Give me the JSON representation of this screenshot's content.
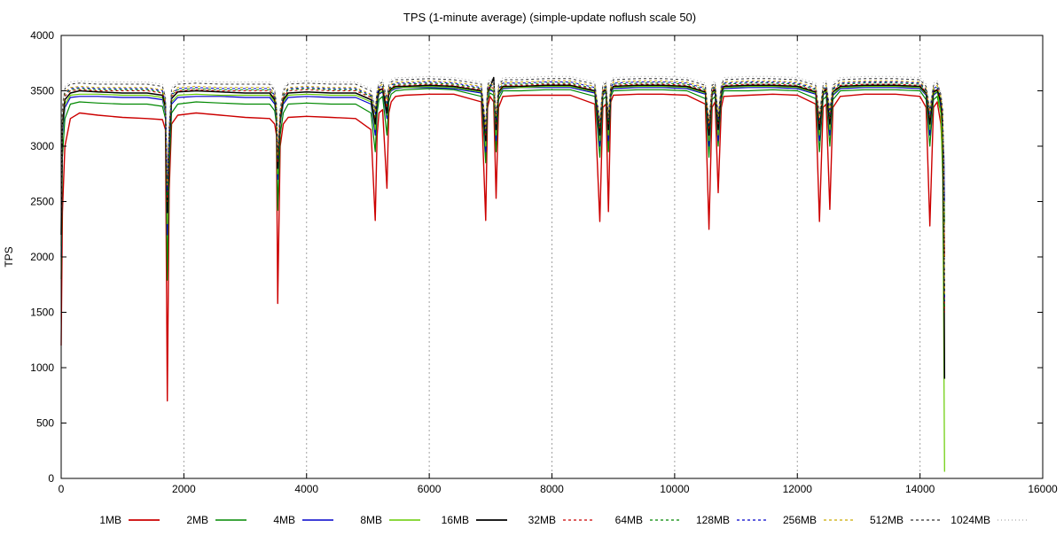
{
  "chart_data": {
    "type": "line",
    "title": "TPS (1-minute average) (simple-update noflush scale 50)",
    "xlabel": "",
    "ylabel": "TPS",
    "xlim": [
      0,
      16000
    ],
    "ylim": [
      0,
      4000
    ],
    "x_ticks": [
      0,
      2000,
      4000,
      6000,
      8000,
      10000,
      12000,
      14000,
      16000
    ],
    "y_ticks": [
      0,
      500,
      1000,
      1500,
      2000,
      2500,
      3000,
      3500,
      4000
    ],
    "x_grid": true,
    "y_grid": false,
    "legend_position": "bottom",
    "x": [
      0,
      20,
      60,
      150,
      300,
      600,
      1000,
      1400,
      1650,
      1700,
      1730,
      1760,
      1800,
      1900,
      2200,
      2600,
      3000,
      3400,
      3480,
      3510,
      3530,
      3570,
      3620,
      3700,
      4000,
      4400,
      4800,
      5050,
      5120,
      5150,
      5180,
      5240,
      5310,
      5340,
      5380,
      5450,
      5600,
      6000,
      6400,
      6850,
      6920,
      6950,
      6990,
      7050,
      7090,
      7130,
      7200,
      7500,
      7900,
      8300,
      8700,
      8780,
      8830,
      8880,
      8920,
      8960,
      9000,
      9400,
      9800,
      10200,
      10500,
      10560,
      10610,
      10660,
      10710,
      10760,
      10800,
      11200,
      11600,
      12000,
      12300,
      12360,
      12420,
      12470,
      12530,
      12580,
      12700,
      13100,
      13600,
      14000,
      14100,
      14160,
      14220,
      14280,
      14340,
      14370,
      14390,
      14400
    ],
    "series": [
      {
        "name": "1MB",
        "color": "#cc0000",
        "dash": "solid",
        "width": 1.4,
        "values": [
          1200,
          2400,
          3000,
          3250,
          3300,
          3280,
          3260,
          3250,
          3240,
          3150,
          700,
          2600,
          3200,
          3280,
          3300,
          3280,
          3260,
          3250,
          3200,
          3100,
          1580,
          3000,
          3200,
          3260,
          3270,
          3260,
          3250,
          3150,
          2330,
          3100,
          3300,
          3330,
          2620,
          3300,
          3400,
          3450,
          3460,
          3470,
          3470,
          3400,
          2330,
          3350,
          3450,
          3400,
          2530,
          3350,
          3450,
          3460,
          3460,
          3460,
          3380,
          2320,
          3350,
          3380,
          2410,
          3400,
          3460,
          3470,
          3470,
          3460,
          3380,
          2250,
          3350,
          3400,
          2580,
          3350,
          3450,
          3460,
          3470,
          3460,
          3380,
          2320,
          3350,
          3380,
          2430,
          3350,
          3450,
          3470,
          3470,
          3450,
          3350,
          2280,
          3350,
          3400,
          3200,
          2900,
          2500,
          2000
        ]
      },
      {
        "name": "2MB",
        "color": "#008800",
        "dash": "solid",
        "width": 1.2,
        "values": [
          1800,
          2900,
          3250,
          3380,
          3400,
          3390,
          3380,
          3380,
          3360,
          3250,
          1790,
          2800,
          3300,
          3380,
          3400,
          3390,
          3380,
          3380,
          3320,
          3200,
          2420,
          3100,
          3300,
          3380,
          3390,
          3380,
          3380,
          3300,
          2950,
          3300,
          3420,
          3450,
          3100,
          3400,
          3470,
          3500,
          3510,
          3520,
          3510,
          3450,
          2850,
          3420,
          3480,
          3460,
          2950,
          3420,
          3500,
          3500,
          3510,
          3510,
          3450,
          2900,
          3420,
          3450,
          2950,
          3450,
          3500,
          3510,
          3510,
          3500,
          3430,
          2900,
          3420,
          3450,
          3000,
          3420,
          3500,
          3500,
          3510,
          3500,
          3430,
          2950,
          3420,
          3450,
          3000,
          3420,
          3500,
          3510,
          3510,
          3500,
          3420,
          3000,
          3420,
          3450,
          3300,
          3100,
          2800,
          2300
        ]
      },
      {
        "name": "4MB",
        "color": "#0000cc",
        "dash": "solid",
        "width": 1.2,
        "values": [
          2000,
          3100,
          3350,
          3440,
          3450,
          3450,
          3440,
          3440,
          3420,
          3300,
          2200,
          2950,
          3380,
          3440,
          3450,
          3450,
          3440,
          3440,
          3380,
          3250,
          2700,
          3200,
          3380,
          3440,
          3450,
          3440,
          3440,
          3380,
          3100,
          3380,
          3470,
          3490,
          3250,
          3460,
          3500,
          3520,
          3530,
          3530,
          3520,
          3480,
          2950,
          3460,
          3510,
          3490,
          3050,
          3460,
          3520,
          3530,
          3530,
          3530,
          3480,
          3000,
          3460,
          3490,
          3050,
          3480,
          3520,
          3530,
          3530,
          3520,
          3470,
          3000,
          3460,
          3490,
          3050,
          3460,
          3520,
          3530,
          3530,
          3520,
          3470,
          3050,
          3460,
          3490,
          3100,
          3460,
          3520,
          3530,
          3530,
          3520,
          3460,
          3100,
          3460,
          3490,
          3350,
          3150,
          2900,
          2500
        ]
      },
      {
        "name": "8MB",
        "color": "#66cc00",
        "dash": "solid",
        "width": 1.2,
        "values": [
          2100,
          3150,
          3380,
          3460,
          3470,
          3470,
          3460,
          3460,
          3440,
          3320,
          2300,
          3000,
          3400,
          3460,
          3470,
          3460,
          3460,
          3460,
          3400,
          3270,
          2750,
          3220,
          3400,
          3460,
          3470,
          3460,
          3460,
          3400,
          3150,
          3400,
          3480,
          3500,
          3280,
          3470,
          3510,
          3530,
          3530,
          3540,
          3530,
          3490,
          3000,
          3470,
          3520,
          3500,
          3100,
          3470,
          3530,
          3530,
          3540,
          3540,
          3490,
          3050,
          3470,
          3500,
          3100,
          3490,
          3530,
          3540,
          3540,
          3530,
          3480,
          3050,
          3470,
          3500,
          3100,
          3470,
          3530,
          3540,
          3540,
          3530,
          3480,
          3100,
          3470,
          3500,
          3150,
          3470,
          3530,
          3540,
          3540,
          3530,
          3470,
          3150,
          3470,
          3500,
          3300,
          2700,
          1000,
          60
        ]
      },
      {
        "name": "16MB",
        "color": "#000000",
        "dash": "solid",
        "width": 1.5,
        "values": [
          2200,
          3200,
          3420,
          3480,
          3500,
          3490,
          3480,
          3480,
          3460,
          3360,
          2400,
          3050,
          3430,
          3490,
          3500,
          3490,
          3480,
          3480,
          3420,
          3300,
          2800,
          3250,
          3420,
          3480,
          3490,
          3480,
          3480,
          3420,
          3200,
          3420,
          3500,
          3520,
          3300,
          3490,
          3520,
          3540,
          3540,
          3550,
          3540,
          3500,
          3050,
          3490,
          3530,
          3620,
          3150,
          3490,
          3540,
          3540,
          3550,
          3550,
          3500,
          3100,
          3490,
          3510,
          3150,
          3500,
          3540,
          3550,
          3550,
          3540,
          3490,
          3100,
          3490,
          3510,
          3150,
          3490,
          3540,
          3550,
          3550,
          3540,
          3490,
          3150,
          3490,
          3510,
          3200,
          3490,
          3540,
          3550,
          3550,
          3540,
          3480,
          3200,
          3490,
          3510,
          3400,
          3200,
          2000,
          900
        ]
      },
      {
        "name": "32MB",
        "color": "#cc0000",
        "dash": "3,3",
        "width": 1.0,
        "values": [
          2300,
          3250,
          3450,
          3500,
          3510,
          3500,
          3500,
          3500,
          3480,
          3380,
          2500,
          3100,
          3450,
          3500,
          3510,
          3500,
          3500,
          3500,
          3440,
          3320,
          2850,
          3280,
          3440,
          3500,
          3510,
          3500,
          3500,
          3440,
          3250,
          3440,
          3510,
          3530,
          3350,
          3500,
          3530,
          3550,
          3550,
          3560,
          3550,
          3510,
          3100,
          3500,
          3540,
          3520,
          3200,
          3500,
          3550,
          3550,
          3560,
          3560,
          3510,
          3150,
          3500,
          3520,
          3200,
          3510,
          3550,
          3560,
          3560,
          3550,
          3500,
          3150,
          3500,
          3520,
          3200,
          3500,
          3550,
          3560,
          3560,
          3550,
          3500,
          3200,
          3500,
          3520,
          3250,
          3500,
          3550,
          3560,
          3560,
          3550,
          3490,
          3250,
          3500,
          3520,
          3420,
          3250,
          2600,
          1500
        ]
      },
      {
        "name": "64MB",
        "color": "#008800",
        "dash": "3,3",
        "width": 1.0,
        "values": [
          2350,
          3280,
          3470,
          3510,
          3520,
          3510,
          3510,
          3510,
          3490,
          3390,
          2550,
          3120,
          3460,
          3510,
          3520,
          3510,
          3510,
          3510,
          3450,
          3330,
          2880,
          3290,
          3450,
          3510,
          3520,
          3510,
          3510,
          3450,
          3270,
          3450,
          3520,
          3540,
          3370,
          3510,
          3540,
          3560,
          3560,
          3570,
          3560,
          3520,
          3120,
          3510,
          3550,
          3530,
          3220,
          3510,
          3560,
          3560,
          3570,
          3570,
          3520,
          3170,
          3510,
          3530,
          3220,
          3520,
          3560,
          3570,
          3570,
          3560,
          3510,
          3170,
          3510,
          3530,
          3220,
          3510,
          3560,
          3570,
          3570,
          3560,
          3510,
          3220,
          3510,
          3530,
          3270,
          3510,
          3560,
          3570,
          3570,
          3560,
          3500,
          3270,
          3510,
          3530,
          3430,
          3270,
          2650,
          1550
        ]
      },
      {
        "name": "128MB",
        "color": "#0000cc",
        "dash": "3,3",
        "width": 1.0,
        "values": [
          2400,
          3300,
          3480,
          3520,
          3530,
          3520,
          3520,
          3520,
          3500,
          3400,
          2600,
          3140,
          3470,
          3520,
          3530,
          3520,
          3520,
          3520,
          3460,
          3340,
          2900,
          3300,
          3460,
          3520,
          3530,
          3520,
          3520,
          3460,
          3290,
          3460,
          3530,
          3550,
          3390,
          3520,
          3550,
          3570,
          3570,
          3580,
          3570,
          3530,
          3140,
          3520,
          3560,
          3540,
          3240,
          3520,
          3570,
          3570,
          3580,
          3580,
          3530,
          3190,
          3520,
          3540,
          3240,
          3530,
          3570,
          3580,
          3580,
          3570,
          3520,
          3190,
          3520,
          3540,
          3240,
          3520,
          3570,
          3580,
          3580,
          3570,
          3520,
          3240,
          3520,
          3540,
          3290,
          3520,
          3570,
          3580,
          3580,
          3570,
          3510,
          3290,
          3520,
          3540,
          3440,
          3290,
          2700,
          1600
        ]
      },
      {
        "name": "256MB",
        "color": "#ccaa00",
        "dash": "3,3",
        "width": 1.0,
        "values": [
          2450,
          3320,
          3490,
          3530,
          3540,
          3530,
          3530,
          3530,
          3510,
          3410,
          2650,
          3160,
          3480,
          3530,
          3540,
          3530,
          3530,
          3530,
          3470,
          3350,
          2920,
          3310,
          3470,
          3530,
          3540,
          3530,
          3530,
          3470,
          3310,
          3470,
          3540,
          3560,
          3410,
          3530,
          3560,
          3580,
          3580,
          3590,
          3580,
          3540,
          3160,
          3530,
          3570,
          3550,
          3260,
          3530,
          3580,
          3580,
          3590,
          3590,
          3540,
          3210,
          3530,
          3550,
          3260,
          3540,
          3580,
          3590,
          3590,
          3580,
          3530,
          3210,
          3530,
          3550,
          3260,
          3530,
          3580,
          3590,
          3590,
          3580,
          3530,
          3260,
          3530,
          3550,
          3310,
          3530,
          3580,
          3590,
          3590,
          3580,
          3520,
          3310,
          3530,
          3550,
          3450,
          3310,
          2750,
          1650
        ]
      },
      {
        "name": "512MB",
        "color": "#333333",
        "dash": "3,3",
        "width": 1.0,
        "values": [
          2500,
          3350,
          3520,
          3560,
          3570,
          3560,
          3560,
          3560,
          3540,
          3440,
          2700,
          3180,
          3510,
          3560,
          3570,
          3560,
          3560,
          3560,
          3500,
          3380,
          2950,
          3330,
          3500,
          3560,
          3570,
          3560,
          3560,
          3500,
          3330,
          3500,
          3560,
          3580,
          3430,
          3550,
          3580,
          3600,
          3600,
          3610,
          3600,
          3560,
          3180,
          3550,
          3590,
          3570,
          3280,
          3550,
          3600,
          3600,
          3610,
          3610,
          3560,
          3230,
          3550,
          3570,
          3280,
          3560,
          3600,
          3610,
          3610,
          3600,
          3550,
          3230,
          3550,
          3570,
          3280,
          3550,
          3600,
          3610,
          3610,
          3600,
          3550,
          3280,
          3550,
          3570,
          3330,
          3550,
          3600,
          3610,
          3610,
          3600,
          3540,
          3330,
          3550,
          3570,
          3470,
          3330,
          2800,
          1700
        ]
      },
      {
        "name": "1024MB",
        "color": "#aaaaaa",
        "dash": "1,3",
        "width": 1.0,
        "values": [
          2550,
          3380,
          3540,
          3580,
          3590,
          3580,
          3580,
          3580,
          3560,
          3460,
          2750,
          3200,
          3530,
          3580,
          3590,
          3580,
          3580,
          3580,
          3520,
          3400,
          3000,
          3350,
          3520,
          3580,
          3590,
          3580,
          3580,
          3520,
          3350,
          3520,
          3580,
          3600,
          3450,
          3570,
          3600,
          3620,
          3620,
          3630,
          3620,
          3580,
          3200,
          3570,
          3610,
          3590,
          3300,
          3570,
          3620,
          3620,
          3630,
          3630,
          3580,
          3250,
          3570,
          3590,
          3300,
          3580,
          3620,
          3630,
          3630,
          3620,
          3570,
          3250,
          3570,
          3590,
          3300,
          3570,
          3620,
          3630,
          3630,
          3620,
          3570,
          3300,
          3570,
          3590,
          3350,
          3570,
          3620,
          3630,
          3630,
          3620,
          3560,
          3350,
          3570,
          3590,
          3490,
          3350,
          2850,
          1750
        ]
      }
    ]
  }
}
